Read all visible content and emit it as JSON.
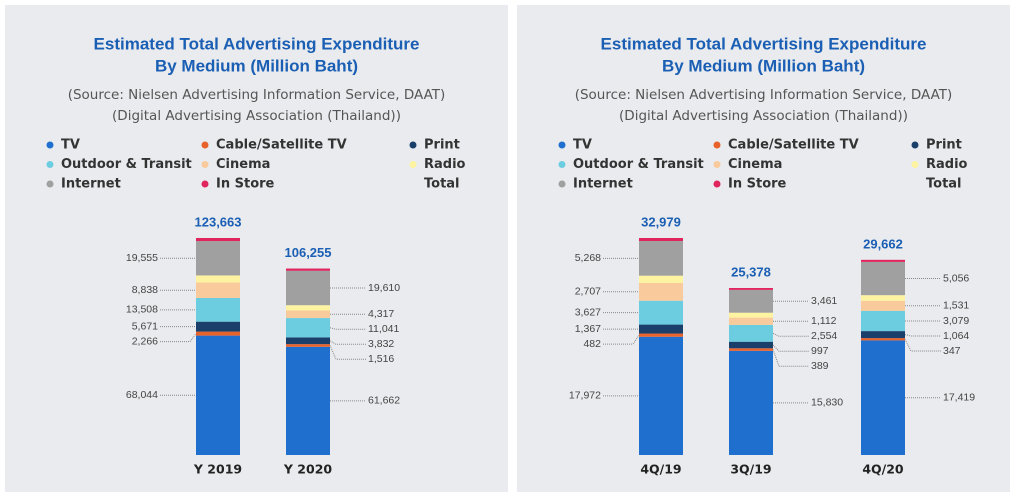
{
  "chart_data": [
    {
      "type": "bar",
      "stacked": true,
      "title": [
        "Estimated Total Advertising Expenditure",
        "By Medium (Million Baht)"
      ],
      "subtitle": [
        "(Source: Nielsen Advertising Information Service, DAAT)",
        "(Digital Advertising Association (Thailand))"
      ],
      "categories": [
        "Y 2019",
        "Y 2020"
      ],
      "series": [
        {
          "name": "TV",
          "color": "#1f6fce",
          "values": [
            68044,
            61662
          ],
          "value_labels": [
            "68,044",
            "61,662"
          ]
        },
        {
          "name": "Cable/Satellite TV",
          "color": "#e8622c",
          "values": [
            2266,
            1516
          ],
          "value_labels": [
            "2,266",
            "1,516"
          ]
        },
        {
          "name": "Print",
          "color": "#1b3f6b",
          "values": [
            5671,
            3832
          ],
          "value_labels": [
            "5,671",
            "3,832"
          ]
        },
        {
          "name": "Outdoor & Transit",
          "color": "#6dcde0",
          "values": [
            13508,
            11041
          ],
          "value_labels": [
            "13,508",
            "11,041"
          ]
        },
        {
          "name": "Cinema",
          "color": "#f9cb9c",
          "values": [
            8838,
            4317
          ],
          "value_labels": [
            "8,838",
            "4,317"
          ]
        },
        {
          "name": "Radio",
          "color": "#fdf3a0",
          "values": [
            4000,
            3000
          ],
          "value_labels": [
            null,
            null
          ]
        },
        {
          "name": "Internet",
          "color": "#a0a0a0",
          "values": [
            19555,
            19610
          ],
          "value_labels": [
            "19,555",
            "19,610"
          ]
        },
        {
          "name": "In Store",
          "color": "#e0245e",
          "values": [
            1781,
            1277
          ],
          "value_labels": [
            null,
            null
          ]
        }
      ],
      "total_name": "Total",
      "totals": [
        123663,
        106255
      ],
      "total_labels": [
        "123,663",
        "106,255"
      ]
    },
    {
      "type": "bar",
      "stacked": true,
      "title": [
        "Estimated Total Advertising Expenditure",
        "By Medium (Million Baht)"
      ],
      "subtitle": [
        "(Source: Nielsen Advertising Information Service, DAAT)",
        "(Digital Advertising Association (Thailand))"
      ],
      "categories": [
        "4Q/19",
        "3Q/19",
        "4Q/20"
      ],
      "series": [
        {
          "name": "TV",
          "color": "#1f6fce",
          "values": [
            17972,
            15830,
            17419
          ],
          "value_labels": [
            "17,972",
            "15,830",
            "17,419"
          ]
        },
        {
          "name": "Cable/Satellite TV",
          "color": "#e8622c",
          "values": [
            482,
            389,
            347
          ],
          "value_labels": [
            "482",
            "389",
            "347"
          ]
        },
        {
          "name": "Print",
          "color": "#1b3f6b",
          "values": [
            1367,
            997,
            1064
          ],
          "value_labels": [
            "1,367",
            "997",
            "1,064"
          ]
        },
        {
          "name": "Outdoor & Transit",
          "color": "#6dcde0",
          "values": [
            3627,
            2554,
            3079
          ],
          "value_labels": [
            "3,627",
            "2,554",
            "3,079"
          ]
        },
        {
          "name": "Cinema",
          "color": "#f9cb9c",
          "values": [
            2707,
            1112,
            1531
          ],
          "value_labels": [
            "2,707",
            "1,112",
            "1,531"
          ]
        },
        {
          "name": "Radio",
          "color": "#fdf3a0",
          "values": [
            1100,
            750,
            850
          ],
          "value_labels": [
            null,
            null,
            null
          ]
        },
        {
          "name": "Internet",
          "color": "#a0a0a0",
          "values": [
            5268,
            3461,
            5056
          ],
          "value_labels": [
            "5,268",
            "3,461",
            "5,056"
          ]
        },
        {
          "name": "In Store",
          "color": "#e0245e",
          "values": [
            456,
            285,
            316
          ],
          "value_labels": [
            null,
            null,
            null
          ]
        }
      ],
      "total_name": "Total",
      "totals": [
        32979,
        25378,
        29662
      ],
      "total_labels": [
        "32,979",
        "25,378",
        "29,662"
      ]
    }
  ]
}
